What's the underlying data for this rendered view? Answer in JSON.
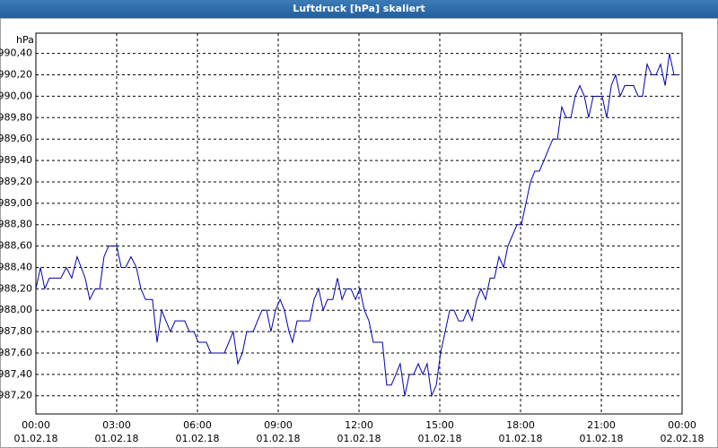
{
  "chart_data": {
    "type": "line",
    "title": "Luftdruck [hPa] skaliert",
    "y_label": "hPa",
    "xlim": [
      0,
      24
    ],
    "ylim": [
      987.03,
      990.59
    ],
    "grid": true,
    "xticks": [
      {
        "value": 0,
        "label": "00:00",
        "date": "01.02.18"
      },
      {
        "value": 3,
        "label": "03:00",
        "date": "01.02.18"
      },
      {
        "value": 6,
        "label": "06:00",
        "date": "01.02.18"
      },
      {
        "value": 9,
        "label": "09:00",
        "date": "01.02.18"
      },
      {
        "value": 12,
        "label": "12:00",
        "date": "01.02.18"
      },
      {
        "value": 15,
        "label": "15:00",
        "date": "01.02.18"
      },
      {
        "value": 18,
        "label": "18:00",
        "date": "01.02.18"
      },
      {
        "value": 21,
        "label": "21:00",
        "date": "01.02.18"
      },
      {
        "value": 24,
        "label": "00:00",
        "date": "02.02.18"
      }
    ],
    "yticks": [
      {
        "value": 987.2,
        "label": "987,20"
      },
      {
        "value": 987.4,
        "label": "987,40"
      },
      {
        "value": 987.6,
        "label": "987,60"
      },
      {
        "value": 987.8,
        "label": "987,80"
      },
      {
        "value": 988.0,
        "label": "988,00"
      },
      {
        "value": 988.2,
        "label": "988,20"
      },
      {
        "value": 988.4,
        "label": "988,40"
      },
      {
        "value": 988.6,
        "label": "988,60"
      },
      {
        "value": 988.8,
        "label": "988,80"
      },
      {
        "value": 989.0,
        "label": "989,00"
      },
      {
        "value": 989.2,
        "label": "989,20"
      },
      {
        "value": 989.4,
        "label": "989,40"
      },
      {
        "value": 989.6,
        "label": "989,60"
      },
      {
        "value": 989.8,
        "label": "989,80"
      },
      {
        "value": 990.0,
        "label": "990,00"
      },
      {
        "value": 990.2,
        "label": "990,20"
      },
      {
        "value": 990.4,
        "label": "990,40"
      }
    ],
    "series": [
      {
        "color": "#0000aa",
        "x": [
          0,
          0.17,
          0.33,
          0.5,
          0.93,
          1.13,
          1.33,
          1.53,
          1.83,
          2,
          2.2,
          2.37,
          2.53,
          2.7,
          3,
          3.17,
          3.33,
          3.53,
          3.73,
          3.9,
          4.07,
          4.33,
          4.5,
          4.67,
          4.83,
          5,
          5.17,
          5.53,
          5.7,
          5.87,
          6.03,
          6.33,
          6.5,
          7,
          7.33,
          7.5,
          7.67,
          7.83,
          8.07,
          8.23,
          8.4,
          8.57,
          8.73,
          8.9,
          9.07,
          9.23,
          9.4,
          9.53,
          9.7,
          10.17,
          10.33,
          10.5,
          10.67,
          10.83,
          11.03,
          11.2,
          11.37,
          11.53,
          11.7,
          11.87,
          12.03,
          12.2,
          12.37,
          12.53,
          12.87,
          13.03,
          13.2,
          13.37,
          13.53,
          13.7,
          13.87,
          14.03,
          14.2,
          14.37,
          14.53,
          14.7,
          14.87,
          15.03,
          15.2,
          15.37,
          15.53,
          15.7,
          15.87,
          16.03,
          16.2,
          16.37,
          16.53,
          16.7,
          16.87,
          17.03,
          17.2,
          17.37,
          17.53,
          17.7,
          17.87,
          18.03,
          18.2,
          18.37,
          18.53,
          18.7,
          18.87,
          19.03,
          19.2,
          19.37,
          19.53,
          19.7,
          19.87,
          20.03,
          20.2,
          20.37,
          20.53,
          20.7,
          21.03,
          21.2,
          21.37,
          21.53,
          21.7,
          21.87,
          22.2,
          22.37,
          22.53,
          22.7,
          22.87,
          23.03,
          23.2,
          23.37,
          23.53,
          23.7,
          23.87
        ],
        "values": [
          988.2,
          988.4,
          988.2,
          988.3,
          988.3,
          988.4,
          988.3,
          988.5,
          988.3,
          988.1,
          988.2,
          988.2,
          988.5,
          988.6,
          988.6,
          988.4,
          988.4,
          988.5,
          988.4,
          988.2,
          988.1,
          988.1,
          987.7,
          988.0,
          987.9,
          987.8,
          987.9,
          987.9,
          987.8,
          987.8,
          987.7,
          987.7,
          987.6,
          987.6,
          987.8,
          987.5,
          987.6,
          987.8,
          987.8,
          987.9,
          988.0,
          988.0,
          987.8,
          988.0,
          988.1,
          988.0,
          987.8,
          987.7,
          987.9,
          987.9,
          988.1,
          988.2,
          988.0,
          988.1,
          988.1,
          988.3,
          988.1,
          988.2,
          988.2,
          988.1,
          988.2,
          988.0,
          987.9,
          987.7,
          987.7,
          987.3,
          987.3,
          987.4,
          987.5,
          987.2,
          987.4,
          987.4,
          987.5,
          987.4,
          987.5,
          987.2,
          987.3,
          987.6,
          987.8,
          988.0,
          988.0,
          987.9,
          987.9,
          988.0,
          987.9,
          988.1,
          988.2,
          988.1,
          988.3,
          988.3,
          988.5,
          988.4,
          988.6,
          988.7,
          988.8,
          988.8,
          989.0,
          989.2,
          989.3,
          989.3,
          989.4,
          989.5,
          989.6,
          989.6,
          989.9,
          989.8,
          989.8,
          990.0,
          990.1,
          990.0,
          989.8,
          990.0,
          990.0,
          989.8,
          990.1,
          990.2,
          990.0,
          990.1,
          990.1,
          990.0,
          990.0,
          990.3,
          990.2,
          990.2,
          990.3,
          990.1,
          990.4,
          990.2,
          990.2
        ]
      }
    ]
  }
}
